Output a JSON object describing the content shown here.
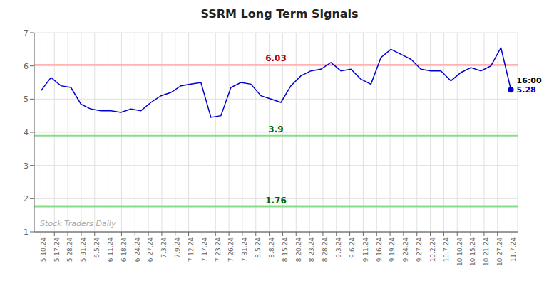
{
  "chart_data": {
    "type": "line",
    "title": "SSRM Long Term Signals",
    "x": [
      0,
      0.744681,
      1.489362,
      2.234043,
      2.978723,
      3.723404,
      4.468085,
      5.212766,
      5.957447,
      6.702128,
      7.446809,
      8.191489,
      8.93617,
      9.680851,
      10.425532,
      11.170213,
      11.914894,
      12.659574,
      13.404255,
      14.148936,
      14.893617,
      15.638298,
      16.382979,
      17.12766,
      17.87234,
      18.617021,
      19.361702,
      20.106383,
      20.851064,
      21.595745,
      22.340426,
      23.085106,
      23.829787,
      24.574468,
      25.319149,
      26.06383,
      26.808511,
      27.553191,
      28.297872,
      29.042553,
      29.787234,
      30.531915,
      31.276596,
      32.021277,
      32.765957,
      33.510638,
      34.255319,
      35
    ],
    "values": [
      5.25,
      5.65,
      5.4,
      5.35,
      4.85,
      4.7,
      4.65,
      4.65,
      4.6,
      4.7,
      4.65,
      4.9,
      5.1,
      5.2,
      5.4,
      5.45,
      5.5,
      4.45,
      4.5,
      5.35,
      5.5,
      5.45,
      5.1,
      5.0,
      4.9,
      5.4,
      5.7,
      5.85,
      5.9,
      6.1,
      5.85,
      5.9,
      5.6,
      5.45,
      6.25,
      6.5,
      6.35,
      6.2,
      5.9,
      5.85,
      5.85,
      5.55,
      5.8,
      5.95,
      5.85,
      6.0,
      6.55,
      5.28
    ],
    "color": "#0000cc",
    "xlim": [
      -0.5,
      35.5
    ],
    "xticks": [
      {
        "value": 0,
        "label": "5.10.24"
      },
      {
        "value": 1,
        "label": "5.17.24"
      },
      {
        "value": 2,
        "label": "5.28.24"
      },
      {
        "value": 3,
        "label": "5.31.24"
      },
      {
        "value": 4,
        "label": "6.5.24"
      },
      {
        "value": 5,
        "label": "6.11.24"
      },
      {
        "value": 6,
        "label": "6.18.24"
      },
      {
        "value": 7,
        "label": "6.24.24"
      },
      {
        "value": 8,
        "label": "6.27.24"
      },
      {
        "value": 9,
        "label": "7.3.24"
      },
      {
        "value": 10,
        "label": "7.9.24"
      },
      {
        "value": 11,
        "label": "7.12.24"
      },
      {
        "value": 12,
        "label": "7.17.24"
      },
      {
        "value": 13,
        "label": "7.23.24"
      },
      {
        "value": 14,
        "label": "7.26.24"
      },
      {
        "value": 15,
        "label": "7.31.24"
      },
      {
        "value": 16,
        "label": "8.5.24"
      },
      {
        "value": 17,
        "label": "8.8.24"
      },
      {
        "value": 18,
        "label": "8.15.24"
      },
      {
        "value": 19,
        "label": "8.20.24"
      },
      {
        "value": 20,
        "label": "8.23.24"
      },
      {
        "value": 21,
        "label": "8.28.24"
      },
      {
        "value": 22,
        "label": "9.3.24"
      },
      {
        "value": 23,
        "label": "9.6.24"
      },
      {
        "value": 24,
        "label": "9.11.24"
      },
      {
        "value": 25,
        "label": "9.16.24"
      },
      {
        "value": 26,
        "label": "9.19.24"
      },
      {
        "value": 27,
        "label": "9.24.24"
      },
      {
        "value": 28,
        "label": "9.27.24"
      },
      {
        "value": 29,
        "label": "10.2.24"
      },
      {
        "value": 30,
        "label": "10.7.24"
      },
      {
        "value": 31,
        "label": "10.10.24"
      },
      {
        "value": 32,
        "label": "10.15.24"
      },
      {
        "value": 33,
        "label": "10.21.24"
      },
      {
        "value": 34,
        "label": "10.27.24"
      },
      {
        "value": 35,
        "label": "11.7.24"
      }
    ],
    "ylim": [
      1,
      7
    ],
    "yticks": [
      1,
      2,
      3,
      4,
      5,
      6,
      7
    ],
    "grid": true,
    "reference_lines": [
      {
        "y": 6.03,
        "label": "6.03",
        "color": "#ff9999",
        "label_color": "#aa0000"
      },
      {
        "y": 3.9,
        "label": "3.9",
        "color": "#88dd88",
        "label_color": "#006600"
      },
      {
        "y": 1.76,
        "label": "1.76",
        "color": "#88dd88",
        "label_color": "#006600"
      },
      {
        "y": 1.0,
        "label": "Stock Traders Daily",
        "color": "#aaaaaa",
        "label_color": "#aaaaaa"
      }
    ],
    "annotations": [
      {
        "text": "16:00",
        "x": 35,
        "y": 5.28
      },
      {
        "text": "5.28",
        "x": 35,
        "y": 5.28,
        "color": "#0000cc"
      }
    ]
  }
}
